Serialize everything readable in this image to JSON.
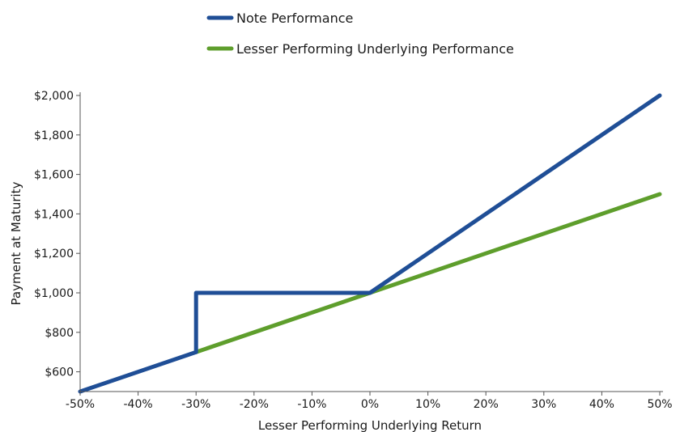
{
  "chart_data": {
    "type": "line",
    "xlabel": "Lesser Performing Underlying Return",
    "ylabel": "Payment at Maturity",
    "xlim": [
      -50,
      50
    ],
    "ylim": [
      500,
      2000
    ],
    "x_ticks": [
      -50,
      -40,
      -30,
      -20,
      -10,
      0,
      10,
      20,
      30,
      40,
      50
    ],
    "x_tick_labels": [
      "-50%",
      "-40%",
      "-30%",
      "-20%",
      "-10%",
      "0%",
      "10%",
      "20%",
      "30%",
      "40%",
      "50%"
    ],
    "y_ticks": [
      600,
      800,
      1000,
      1200,
      1400,
      1600,
      1800,
      2000
    ],
    "y_tick_labels": [
      "$600",
      "$800",
      "$1,000",
      "$1,200",
      "$1,400",
      "$1,600",
      "$1,800",
      "$2,000"
    ],
    "legend_position": "top",
    "grid": false,
    "series": [
      {
        "name": "Note Performance",
        "color": "#1f4e96",
        "x": [
          -50,
          -30,
          -30,
          0,
          50
        ],
        "y": [
          500,
          700,
          1000,
          1000,
          2000
        ]
      },
      {
        "name": "Lesser Performing Underlying Performance",
        "color": "#5e9e2c",
        "x": [
          -30,
          50
        ],
        "y": [
          700,
          1500
        ]
      }
    ]
  }
}
